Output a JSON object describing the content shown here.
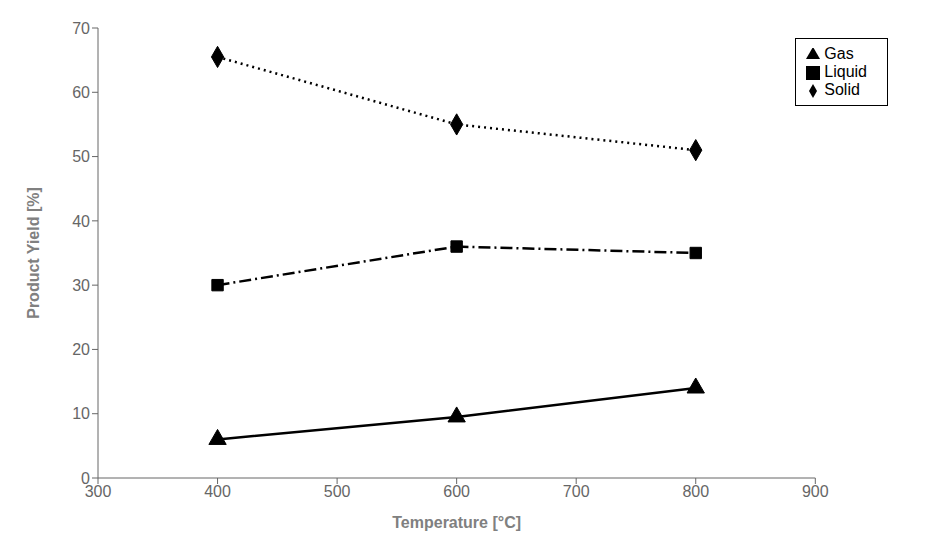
{
  "chart_data": {
    "type": "line",
    "xlabel": "Temperature [°C]",
    "ylabel": "Product Yield [%]",
    "xlim": [
      300,
      900
    ],
    "ylim": [
      0,
      70
    ],
    "xticks": [
      300,
      400,
      500,
      600,
      700,
      800,
      900
    ],
    "yticks": [
      0,
      10,
      20,
      30,
      40,
      50,
      60,
      70
    ],
    "grid": false,
    "legend": "upper right",
    "x": [
      400,
      600,
      800
    ],
    "series": [
      {
        "name": "Solid",
        "color": "#000000",
        "values": [
          65.5,
          55,
          51
        ],
        "line_style": "dotted",
        "marker": "diamond"
      },
      {
        "name": "Liquid",
        "color": "#000000",
        "values": [
          30,
          36,
          35
        ],
        "line_style": "dashdot",
        "marker": "square"
      },
      {
        "name": "Gas",
        "color": "#000000",
        "values": [
          6,
          9.5,
          14
        ],
        "line_style": "solid",
        "marker": "triangle"
      }
    ]
  }
}
